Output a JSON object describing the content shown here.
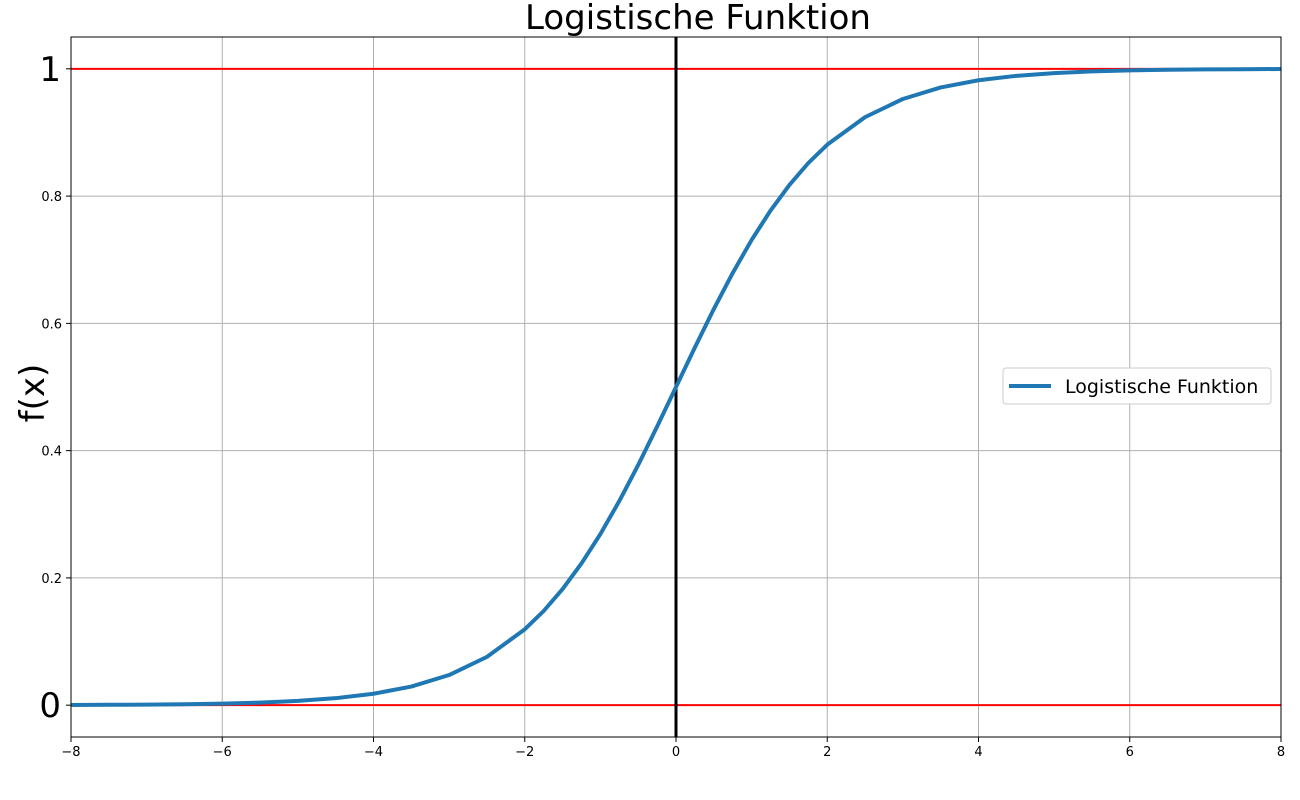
{
  "chart_data": {
    "type": "line",
    "title": "Logistische Funktion",
    "xlabel": "",
    "ylabel": "f(x)",
    "xlim": [
      -8,
      8
    ],
    "ylim": [
      -0.05,
      1.05
    ],
    "grid": true,
    "legend": {
      "placement": "center-right",
      "entries": [
        "Logistische Funktion"
      ]
    },
    "x_ticks": [
      {
        "value": -8,
        "label": "−8"
      },
      {
        "value": -6,
        "label": "−6"
      },
      {
        "value": -4,
        "label": "−4"
      },
      {
        "value": -2,
        "label": "−2"
      },
      {
        "value": 0,
        "label": "0"
      },
      {
        "value": 2,
        "label": "2"
      },
      {
        "value": 4,
        "label": "4"
      },
      {
        "value": 6,
        "label": "6"
      },
      {
        "value": 8,
        "label": "8"
      }
    ],
    "y_ticks": [
      {
        "value": 0,
        "label": "0",
        "size": "large"
      },
      {
        "value": 0.2,
        "label": "0.2",
        "size": "small"
      },
      {
        "value": 0.4,
        "label": "0.4",
        "size": "small"
      },
      {
        "value": 0.6,
        "label": "0.6",
        "size": "small"
      },
      {
        "value": 0.8,
        "label": "0.8",
        "size": "small"
      },
      {
        "value": 1,
        "label": "1",
        "size": "large"
      }
    ],
    "series": [
      {
        "name": "Logistische Funktion",
        "color": "#1f77b4",
        "x": [
          -8,
          -7.5,
          -7,
          -6.5,
          -6,
          -5.5,
          -5,
          -4.5,
          -4,
          -3.5,
          -3,
          -2.5,
          -2,
          -1.75,
          -1.5,
          -1.25,
          -1,
          -0.75,
          -0.5,
          -0.25,
          0,
          0.25,
          0.5,
          0.75,
          1,
          1.25,
          1.5,
          1.75,
          2,
          2.5,
          3,
          3.5,
          4,
          4.5,
          5,
          5.5,
          6,
          6.5,
          7,
          7.5,
          8
        ],
        "y": [
          0.0003,
          0.0006,
          0.0009,
          0.0015,
          0.0025,
          0.0041,
          0.0067,
          0.011,
          0.018,
          0.0293,
          0.0474,
          0.0759,
          0.1192,
          0.148,
          0.1824,
          0.2227,
          0.2689,
          0.3208,
          0.3775,
          0.4378,
          0.5,
          0.5622,
          0.6225,
          0.6792,
          0.7311,
          0.7773,
          0.8176,
          0.852,
          0.8808,
          0.9241,
          0.9526,
          0.9707,
          0.982,
          0.989,
          0.9933,
          0.9959,
          0.9975,
          0.9985,
          0.9991,
          0.9994,
          0.9997
        ]
      }
    ],
    "reference_lines": [
      {
        "orientation": "horizontal",
        "value": 1,
        "color": "#ff0000"
      },
      {
        "orientation": "horizontal",
        "value": 0,
        "color": "#ff0000"
      },
      {
        "orientation": "vertical",
        "value": 0,
        "color": "#000000"
      }
    ]
  }
}
